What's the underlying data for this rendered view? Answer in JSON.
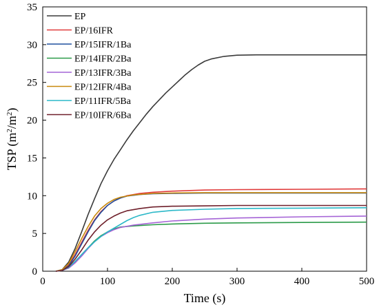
{
  "chart_data": {
    "type": "line",
    "xlabel": "Time (s)",
    "ylabel_main": "TSP (m",
    "ylabel_sup1": "2",
    "ylabel_mid": "/m",
    "ylabel_sup2": "2",
    "ylabel_end": ")",
    "xlim": [
      0,
      500
    ],
    "ylim": [
      0,
      35
    ],
    "x_ticks": [
      0,
      100,
      200,
      300,
      400,
      500
    ],
    "y_ticks": [
      0,
      5,
      10,
      15,
      20,
      25,
      30,
      35
    ],
    "grid": false,
    "legend_position": "top-left",
    "series": [
      {
        "name": "EP",
        "color": "#3a3a3a",
        "points": [
          [
            20,
            0
          ],
          [
            30,
            0.2
          ],
          [
            40,
            1.2
          ],
          [
            50,
            3.0
          ],
          [
            60,
            5.2
          ],
          [
            70,
            7.5
          ],
          [
            80,
            9.6
          ],
          [
            90,
            11.6
          ],
          [
            100,
            13.3
          ],
          [
            110,
            14.8
          ],
          [
            120,
            16.1
          ],
          [
            130,
            17.4
          ],
          [
            140,
            18.6
          ],
          [
            150,
            19.7
          ],
          [
            160,
            20.8
          ],
          [
            170,
            21.8
          ],
          [
            180,
            22.7
          ],
          [
            190,
            23.6
          ],
          [
            200,
            24.4
          ],
          [
            210,
            25.2
          ],
          [
            220,
            26.0
          ],
          [
            230,
            26.7
          ],
          [
            240,
            27.3
          ],
          [
            250,
            27.8
          ],
          [
            260,
            28.1
          ],
          [
            280,
            28.45
          ],
          [
            300,
            28.6
          ],
          [
            330,
            28.65
          ],
          [
            400,
            28.65
          ],
          [
            500,
            28.65
          ]
        ]
      },
      {
        "name": "EP/16IFR",
        "color": "#e03a3a",
        "points": [
          [
            20,
            0
          ],
          [
            30,
            0.1
          ],
          [
            40,
            0.8
          ],
          [
            50,
            2.2
          ],
          [
            60,
            3.8
          ],
          [
            70,
            5.4
          ],
          [
            80,
            6.8
          ],
          [
            90,
            7.9
          ],
          [
            100,
            8.7
          ],
          [
            110,
            9.3
          ],
          [
            120,
            9.7
          ],
          [
            130,
            10.0
          ],
          [
            150,
            10.3
          ],
          [
            170,
            10.45
          ],
          [
            200,
            10.6
          ],
          [
            250,
            10.75
          ],
          [
            300,
            10.8
          ],
          [
            400,
            10.85
          ],
          [
            500,
            10.9
          ]
        ]
      },
      {
        "name": "EP/15IFR/1Ba",
        "color": "#1f4e9e",
        "points": [
          [
            20,
            0
          ],
          [
            30,
            0.1
          ],
          [
            40,
            0.7
          ],
          [
            50,
            2.0
          ],
          [
            60,
            3.6
          ],
          [
            70,
            5.2
          ],
          [
            80,
            6.7
          ],
          [
            90,
            7.8
          ],
          [
            100,
            8.7
          ],
          [
            110,
            9.3
          ],
          [
            120,
            9.7
          ],
          [
            130,
            9.95
          ],
          [
            150,
            10.15
          ],
          [
            170,
            10.25
          ],
          [
            200,
            10.3
          ],
          [
            250,
            10.35
          ],
          [
            300,
            10.35
          ],
          [
            500,
            10.35
          ]
        ]
      },
      {
        "name": "EP/14IFR/2Ba",
        "color": "#2a9a48",
        "points": [
          [
            20,
            0
          ],
          [
            30,
            0.1
          ],
          [
            40,
            0.5
          ],
          [
            50,
            1.2
          ],
          [
            60,
            2.2
          ],
          [
            70,
            3.1
          ],
          [
            80,
            4.0
          ],
          [
            90,
            4.7
          ],
          [
            100,
            5.2
          ],
          [
            110,
            5.6
          ],
          [
            120,
            5.85
          ],
          [
            140,
            6.0
          ],
          [
            170,
            6.15
          ],
          [
            200,
            6.25
          ],
          [
            250,
            6.35
          ],
          [
            300,
            6.4
          ],
          [
            400,
            6.45
          ],
          [
            500,
            6.5
          ]
        ]
      },
      {
        "name": "EP/13IFR/3Ba",
        "color": "#a463d6",
        "points": [
          [
            20,
            0
          ],
          [
            30,
            0.1
          ],
          [
            40,
            0.4
          ],
          [
            50,
            1.1
          ],
          [
            60,
            2.0
          ],
          [
            70,
            3.0
          ],
          [
            80,
            3.9
          ],
          [
            90,
            4.6
          ],
          [
            100,
            5.1
          ],
          [
            110,
            5.5
          ],
          [
            120,
            5.8
          ],
          [
            140,
            6.1
          ],
          [
            170,
            6.4
          ],
          [
            200,
            6.65
          ],
          [
            250,
            6.9
          ],
          [
            300,
            7.05
          ],
          [
            400,
            7.2
          ],
          [
            500,
            7.3
          ]
        ]
      },
      {
        "name": "EP/12IFR/4Ba",
        "color": "#c8880a",
        "points": [
          [
            20,
            0
          ],
          [
            30,
            0.2
          ],
          [
            40,
            1.0
          ],
          [
            50,
            2.6
          ],
          [
            60,
            4.3
          ],
          [
            70,
            5.9
          ],
          [
            80,
            7.3
          ],
          [
            90,
            8.3
          ],
          [
            100,
            9.0
          ],
          [
            110,
            9.5
          ],
          [
            120,
            9.8
          ],
          [
            140,
            10.1
          ],
          [
            170,
            10.3
          ],
          [
            200,
            10.35
          ],
          [
            250,
            10.4
          ],
          [
            300,
            10.4
          ],
          [
            500,
            10.4
          ]
        ]
      },
      {
        "name": "EP/11IFR/5Ba",
        "color": "#2bb8c8",
        "points": [
          [
            20,
            0
          ],
          [
            30,
            0.1
          ],
          [
            40,
            0.5
          ],
          [
            50,
            1.3
          ],
          [
            60,
            2.2
          ],
          [
            70,
            3.1
          ],
          [
            80,
            3.9
          ],
          [
            90,
            4.6
          ],
          [
            100,
            5.2
          ],
          [
            110,
            5.7
          ],
          [
            120,
            6.2
          ],
          [
            130,
            6.7
          ],
          [
            140,
            7.1
          ],
          [
            150,
            7.4
          ],
          [
            170,
            7.8
          ],
          [
            200,
            8.05
          ],
          [
            250,
            8.2
          ],
          [
            300,
            8.3
          ],
          [
            400,
            8.35
          ],
          [
            500,
            8.4
          ]
        ]
      },
      {
        "name": "EP/10IFR/6Ba",
        "color": "#6e1f2a",
        "points": [
          [
            20,
            0
          ],
          [
            30,
            0.1
          ],
          [
            40,
            0.6
          ],
          [
            50,
            1.6
          ],
          [
            60,
            2.8
          ],
          [
            70,
            4.1
          ],
          [
            80,
            5.2
          ],
          [
            90,
            6.1
          ],
          [
            100,
            6.8
          ],
          [
            110,
            7.3
          ],
          [
            120,
            7.7
          ],
          [
            130,
            8.0
          ],
          [
            150,
            8.3
          ],
          [
            170,
            8.5
          ],
          [
            200,
            8.6
          ],
          [
            250,
            8.65
          ],
          [
            300,
            8.7
          ],
          [
            500,
            8.7
          ]
        ]
      }
    ]
  }
}
